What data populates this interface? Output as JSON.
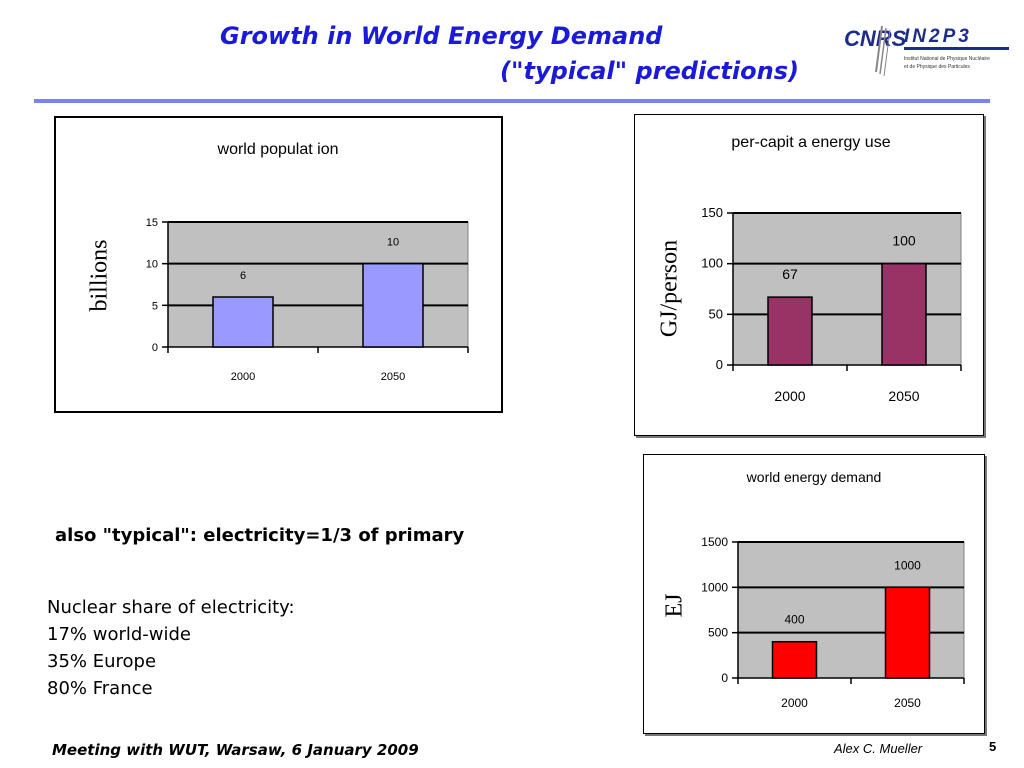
{
  "header": {
    "title_line1": "Growth in World Energy Demand",
    "title_line2": "(\"typical\" predictions)"
  },
  "logo": {
    "text_cnrs": "CNRS",
    "text_in2p3": "IN2P3",
    "subtitle_line1": "Institut National de Physique Nucléaire",
    "subtitle_line2": "et de Physique des Particules"
  },
  "text": {
    "electricity_note": "also \"typical\": electricity=1/3 of primary",
    "nuclear_lines": [
      "Nuclear share of electricity:",
      "17% world-wide",
      "35% Europe",
      "80% France"
    ]
  },
  "footer": {
    "meeting": "Meeting with WUT, Warsaw, 6 January 2009",
    "author": "Alex C. Mueller",
    "page": "5"
  },
  "colors": {
    "title": "#1a1ad8",
    "rule": "#7b85e8",
    "plot_bg": "#c0c0c0"
  },
  "chart_data": [
    {
      "type": "bar",
      "title": "world populat ion",
      "ylabel": "billions",
      "categories": [
        "2000",
        "2050"
      ],
      "values": [
        6,
        10
      ],
      "ylim": [
        0,
        15
      ],
      "yticks": [
        0,
        5,
        10,
        15
      ],
      "bar_color": "#9999ff",
      "grid": true
    },
    {
      "type": "bar",
      "title": "per-capit a energy use",
      "ylabel": "GJ/person",
      "categories": [
        "2000",
        "2050"
      ],
      "values": [
        67,
        100
      ],
      "ylim": [
        0,
        150
      ],
      "yticks": [
        0,
        50,
        100,
        150
      ],
      "bar_color": "#993366",
      "grid": true
    },
    {
      "type": "bar",
      "title": "world energy demand",
      "ylabel": "EJ",
      "categories": [
        "2000",
        "2050"
      ],
      "values": [
        400,
        1000
      ],
      "ylim": [
        0,
        1500
      ],
      "yticks": [
        0,
        500,
        1000,
        1500
      ],
      "bar_color": "#ff0000",
      "grid": true
    }
  ]
}
